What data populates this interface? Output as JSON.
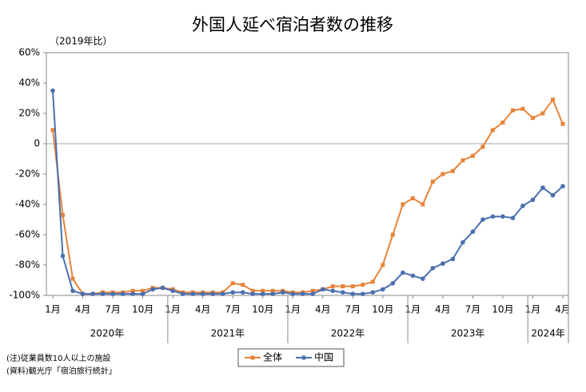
{
  "chart_data": {
    "type": "line",
    "title": "外国人延べ宿泊者数の推移",
    "y_axis_label": "（2019年比）",
    "categories": [
      "1月",
      null,
      null,
      "4月",
      null,
      null,
      "7月",
      null,
      null,
      "10月",
      null,
      null,
      "1月",
      null,
      null,
      "4月",
      null,
      null,
      "7月",
      null,
      null,
      "10月",
      null,
      null,
      "1月",
      null,
      null,
      "4月",
      null,
      null,
      "7月",
      null,
      null,
      "10月",
      null,
      null,
      "1月",
      null,
      null,
      "4月",
      null,
      null,
      "7月",
      null,
      null,
      "10月",
      null,
      null,
      "1月",
      null,
      null,
      "4月"
    ],
    "year_labels": [
      "2020年",
      "2021年",
      "2022年",
      "2023年",
      "2024年"
    ],
    "series": [
      {
        "name": "全体",
        "color": "#e8833a",
        "marker": "square",
        "values": [
          9,
          -47,
          -89,
          -99,
          -99,
          -98,
          -98,
          -98,
          -97,
          -97,
          -95,
          -95,
          -96,
          -98,
          -98,
          -98,
          -98,
          -98,
          -92,
          -93,
          -97,
          -97,
          -97,
          -97,
          -98,
          -98,
          -97,
          -96,
          -94,
          -94,
          -94,
          -93,
          -91,
          -80,
          -60,
          -40,
          -36,
          -40,
          -25,
          -20,
          -18,
          -11,
          -8,
          -2,
          9,
          14,
          22,
          23,
          17,
          20,
          29,
          13
        ]
      },
      {
        "name": "中国",
        "color": "#4a6fb0",
        "marker": "circle",
        "values": [
          35,
          -74,
          -97,
          -99,
          -99,
          -99,
          -99,
          -99,
          -99,
          -99,
          -96,
          -95,
          -97,
          -99,
          -99,
          -99,
          -99,
          -99,
          -98,
          -98,
          -99,
          -99,
          -99,
          -98,
          -99,
          -99,
          -99,
          -96,
          -97,
          -98,
          -99,
          -99,
          -98,
          -96,
          -92,
          -85,
          -87,
          -89,
          -82,
          -79,
          -76,
          -65,
          -58,
          -50,
          -48,
          -48,
          -49,
          -41,
          -37,
          -29,
          -34,
          -28
        ]
      }
    ],
    "ylim": [
      -100,
      60
    ],
    "yticks": [
      {
        "value": -100,
        "label": "-100%"
      },
      {
        "value": -80,
        "label": "-80%"
      },
      {
        "value": -60,
        "label": "-60%"
      },
      {
        "value": -40,
        "label": "-40%"
      },
      {
        "value": -20,
        "label": "-20%"
      },
      0,
      {
        "value": 20,
        "label": "20%"
      },
      {
        "value": 40,
        "label": "40%"
      },
      {
        "value": 60,
        "label": "60%"
      }
    ],
    "legend": "bottom",
    "notes": [
      "(注)従業員数10人以上の施設",
      "(資料)観光庁「宿泊旅行統計」"
    ]
  }
}
